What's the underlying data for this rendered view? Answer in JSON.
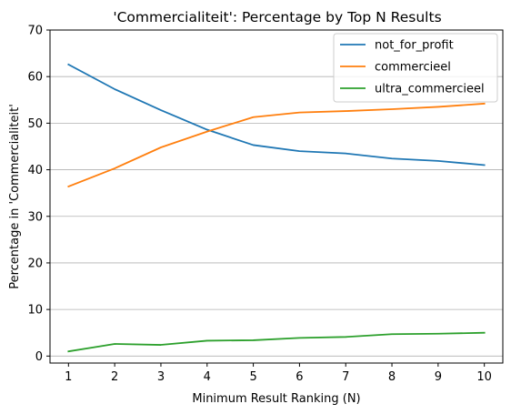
{
  "chart_data": {
    "type": "line",
    "title": "'Commercialiteit': Percentage by Top N Results",
    "xlabel": "Minimum Result Ranking (N)",
    "ylabel": "Percentage in 'Commercialiteit'",
    "x": [
      1,
      2,
      3,
      4,
      5,
      6,
      7,
      8,
      9,
      10
    ],
    "xlim": [
      0.6,
      10.4
    ],
    "ylim": [
      -1.5,
      70
    ],
    "xticks": [
      "1",
      "2",
      "3",
      "4",
      "5",
      "6",
      "7",
      "8",
      "9",
      "10"
    ],
    "yticks": [
      "0",
      "10",
      "20",
      "30",
      "40",
      "50",
      "60",
      "70"
    ],
    "grid": "horizontal",
    "legend_position": "top-right",
    "series": [
      {
        "name": "not_for_profit",
        "color": "#1f77b4",
        "values": [
          62.6,
          57.3,
          52.8,
          48.6,
          45.3,
          44.0,
          43.5,
          42.4,
          41.9,
          41.0
        ]
      },
      {
        "name": "commercieel",
        "color": "#ff7f0e",
        "values": [
          36.4,
          40.3,
          44.8,
          48.2,
          51.3,
          52.3,
          52.6,
          53.0,
          53.5,
          54.2
        ]
      },
      {
        "name": "ultra_commercieel",
        "color": "#2ca02c",
        "values": [
          1.0,
          2.6,
          2.4,
          3.3,
          3.4,
          3.9,
          4.1,
          4.7,
          4.8,
          5.0
        ]
      }
    ]
  }
}
